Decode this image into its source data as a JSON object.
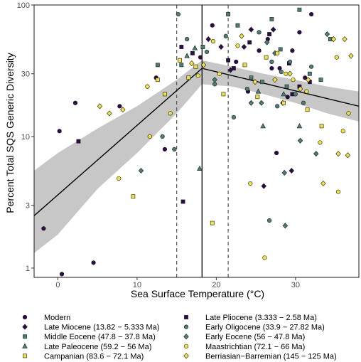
{
  "chart_data": {
    "type": "scatter",
    "xlabel": "Sea Surface Temperature (°C)",
    "ylabel": "Percent Total SQS Generic Diversity",
    "x_scale": "linear",
    "y_scale": "log",
    "xlim": [
      -3,
      38
    ],
    "ylim": [
      0.85,
      100
    ],
    "x_ticks": [
      0,
      10,
      20,
      30
    ],
    "y_ticks": [
      1,
      3,
      10,
      30,
      100
    ],
    "grid": false,
    "legend_placement": "bottom",
    "colors": {
      "purple": "#2d0a4e",
      "teal": "#4a7f73",
      "yellow": "#f1e33a",
      "ribbon": "#bdbdbd"
    },
    "breakpoint_line": {
      "x": 18.2
    },
    "dashed_lines": [
      {
        "x": 15
      },
      {
        "x": 21.5
      }
    ],
    "fit_line": {
      "x": [
        -3,
        18.2,
        38
      ],
      "y": [
        2.5,
        33,
        17
      ]
    },
    "ribbon_upper": {
      "x": [
        -3,
        0,
        5,
        10,
        15,
        18.2,
        22,
        26,
        30,
        34,
        38
      ],
      "y": [
        5.5,
        7.5,
        11.5,
        17,
        27,
        38,
        34,
        30,
        27,
        24,
        22
      ]
    },
    "ribbon_lower": {
      "x": [
        -3,
        0,
        5,
        10,
        15,
        18.2,
        22,
        26,
        30,
        34,
        38
      ],
      "y": [
        1.3,
        1.8,
        4,
        7.5,
        15,
        25,
        24,
        21,
        18,
        15,
        13
      ]
    },
    "series": [
      {
        "name": "Modern",
        "marker": "circle",
        "color": "#2d0a4e",
        "points": [
          [
            -1.8,
            2
          ],
          [
            0.2,
            11
          ],
          [
            0.5,
            0.9
          ],
          [
            2.2,
            18
          ],
          [
            4.5,
            1.1
          ],
          [
            7.8,
            17
          ],
          [
            12.4,
            28
          ],
          [
            13.5,
            8
          ],
          [
            18,
            40
          ],
          [
            19.5,
            70
          ],
          [
            22.5,
            37
          ],
          [
            24,
            22
          ],
          [
            25.4,
            45
          ],
          [
            26.5,
            55
          ],
          [
            27,
            33
          ],
          [
            27.6,
            7.5
          ],
          [
            28,
            33
          ],
          [
            29,
            20
          ],
          [
            29.6,
            45
          ],
          [
            30.5,
            62
          ],
          [
            31.2,
            28
          ],
          [
            32,
            85
          ]
        ]
      },
      {
        "name": "Late Miocene (13.82 − 5.333 Ma)",
        "marker": "diamond",
        "color": "#2d0a4e",
        "points": [
          [
            19,
            55
          ],
          [
            20.6,
            48
          ],
          [
            21.8,
            32
          ],
          [
            23.5,
            48
          ],
          [
            24.4,
            65
          ],
          [
            26,
            4.2
          ],
          [
            27.2,
            65
          ],
          [
            28.4,
            18
          ],
          [
            29.5,
            5.5
          ]
        ]
      },
      {
        "name": "Middle Eocene (47.8 − 37.8 Ma)",
        "marker": "square",
        "color": "#4a7f73",
        "points": [
          [
            12.6,
            35
          ],
          [
            15.6,
            35
          ],
          [
            18.3,
            48
          ],
          [
            21.5,
            85
          ],
          [
            22.7,
            70
          ],
          [
            24.4,
            28
          ],
          [
            25.8,
            26
          ],
          [
            27,
            78
          ],
          [
            28.1,
            46
          ],
          [
            28.9,
            24
          ],
          [
            30.5,
            92
          ],
          [
            31.8,
            30
          ],
          [
            33.2,
            27
          ],
          [
            34.4,
            55
          ]
        ]
      },
      {
        "name": "Late Paleocene (59.2 − 56 Ma)",
        "marker": "triangle",
        "color": "#4a7f73",
        "points": [
          [
            16.3,
            41
          ],
          [
            17.3,
            47
          ],
          [
            17.9,
            5.7
          ],
          [
            25.3,
            22
          ],
          [
            25.9,
            12
          ],
          [
            28.5,
            21
          ],
          [
            30.5,
            12
          ]
        ]
      },
      {
        "name": "Campanian (83.6 − 72.1 Ma)",
        "marker": "square",
        "color": "#f1e33a",
        "points": [
          [
            9.5,
            3.5
          ],
          [
            12.6,
            27
          ],
          [
            13.5,
            21
          ],
          [
            15.4,
            38
          ],
          [
            16.5,
            28
          ],
          [
            17.4,
            34
          ],
          [
            19.5,
            2.2
          ],
          [
            20.9,
            21
          ],
          [
            23.6,
            35
          ],
          [
            25.2,
            20
          ],
          [
            26.3,
            40
          ],
          [
            28.5,
            18
          ],
          [
            31.5,
            16
          ],
          [
            33.3,
            12
          ]
        ]
      },
      {
        "name": "Late Pliocene (3.333 − 2.58 Ma)",
        "marker": "square",
        "color": "#2d0a4e",
        "points": [
          [
            2.6,
            9.2
          ],
          [
            15.6,
            48
          ],
          [
            15.8,
            3.2
          ],
          [
            17,
            43
          ],
          [
            21.5,
            38
          ],
          [
            22.2,
            33
          ],
          [
            24.2,
            52
          ],
          [
            26.7,
            60
          ],
          [
            29.2,
            36
          ],
          [
            29.6,
            21
          ],
          [
            30.5,
            24
          ],
          [
            31.8,
            26
          ]
        ]
      },
      {
        "name": "Early Oligocene (33.9 − 27.82 Ma)",
        "marker": "circle",
        "color": "#4a7f73",
        "points": [
          [
            13.2,
            10
          ],
          [
            14.7,
            8
          ],
          [
            15.2,
            85
          ],
          [
            16.3,
            55
          ],
          [
            18.8,
            44
          ],
          [
            19.8,
            25
          ],
          [
            21.2,
            58
          ],
          [
            22.2,
            14
          ],
          [
            23.9,
            23
          ],
          [
            25.4,
            62
          ],
          [
            26.7,
            2.3
          ],
          [
            27,
            37
          ],
          [
            27.7,
            17
          ],
          [
            28.2,
            31
          ],
          [
            29.3,
            37
          ],
          [
            30,
            21
          ],
          [
            31,
            18
          ],
          [
            32,
            34
          ]
        ]
      },
      {
        "name": "Early Eocene (56 − 47.8 Ma)",
        "marker": "diamond",
        "color": "#4a7f73",
        "points": [
          [
            10.5,
            5.5
          ],
          [
            19.8,
            27
          ],
          [
            24.4,
            18
          ],
          [
            25.7,
            18
          ],
          [
            26.4,
            52
          ],
          [
            27.4,
            43
          ],
          [
            28.6,
            5.3
          ],
          [
            28.7,
            2.1
          ],
          [
            30.6,
            9.3
          ],
          [
            32.6,
            7.4
          ],
          [
            34,
            60
          ]
        ]
      },
      {
        "name": "Maastrichtian (72.1 − 66 Ma)",
        "marker": "circle",
        "color": "#f1e33a",
        "points": [
          [
            7.7,
            4.8
          ],
          [
            11.3,
            24
          ],
          [
            11.6,
            10
          ],
          [
            14.2,
            15
          ],
          [
            17.7,
            29
          ],
          [
            19.6,
            53
          ],
          [
            20.4,
            30
          ],
          [
            22.7,
            49
          ],
          [
            24.3,
            4.4
          ],
          [
            26.1,
            1.2
          ],
          [
            27.7,
            43
          ],
          [
            28.8,
            30
          ],
          [
            29.7,
            27
          ],
          [
            31.4,
            22
          ],
          [
            33.1,
            9
          ],
          [
            35.2,
            40
          ],
          [
            35.4,
            3.8
          ],
          [
            36,
            11
          ],
          [
            36.7,
            15
          ]
        ]
      },
      {
        "name": "Berriasian−Barremian (145 − 125 Ma)",
        "marker": "diamond",
        "color": "#f1e33a",
        "points": [
          [
            5.3,
            17
          ],
          [
            6.5,
            15
          ],
          [
            8.2,
            16
          ],
          [
            16.9,
            36
          ],
          [
            18.4,
            35
          ],
          [
            23.2,
            58
          ],
          [
            24.9,
            26
          ],
          [
            27.4,
            27
          ],
          [
            29.3,
            30
          ],
          [
            30.6,
            23
          ],
          [
            31.6,
            27
          ],
          [
            33.5,
            4.4
          ],
          [
            34.8,
            55
          ],
          [
            35.4,
            7.4
          ],
          [
            36.2,
            55
          ],
          [
            36.6,
            7.2
          ],
          [
            37,
            41
          ]
        ]
      }
    ]
  }
}
